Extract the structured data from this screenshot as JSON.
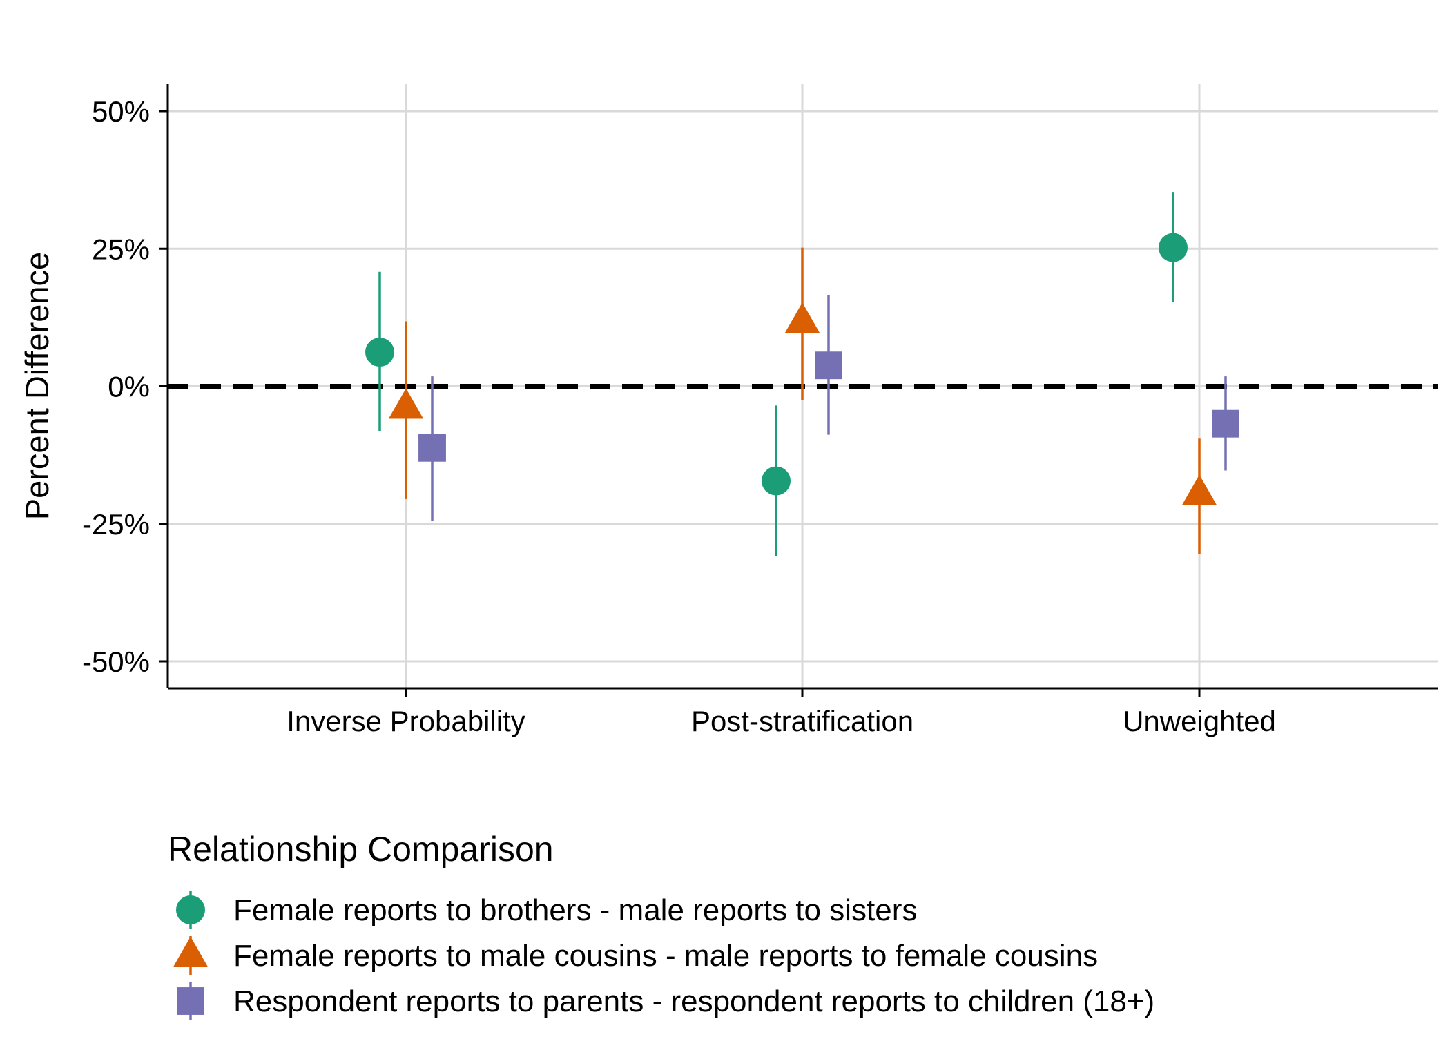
{
  "chart_data": {
    "type": "scatter",
    "subtype": "point-range",
    "ylabel": "Percent Difference",
    "xlabel": "",
    "categories": [
      "Inverse Probability",
      "Post-stratification",
      "Unweighted"
    ],
    "y_ticks": [
      {
        "value": 50,
        "label": "50%"
      },
      {
        "value": 25,
        "label": "25%"
      },
      {
        "value": 0,
        "label": "0%"
      },
      {
        "value": -25,
        "label": "-25%"
      },
      {
        "value": -50,
        "label": "-50%"
      }
    ],
    "ylim": [
      -55,
      55
    ],
    "grid": true,
    "reference_line": {
      "value": 0,
      "style": "dashed",
      "color": "#000000"
    },
    "legend": {
      "title": "Relationship Comparison",
      "placement": "bottom"
    },
    "series": [
      {
        "name": "Female reports to brothers - male reports to sisters",
        "shape": "circle",
        "color": "#1b9e77",
        "values": [
          6.2,
          -17.2,
          25.2
        ],
        "lower": [
          -8.2,
          -30.8,
          15.3
        ],
        "upper": [
          20.8,
          -3.5,
          35.3
        ]
      },
      {
        "name": "Female reports to male cousins - male reports to female cousins",
        "shape": "triangle",
        "color": "#d95f02",
        "values": [
          -3.8,
          11.8,
          -19.5
        ],
        "lower": [
          -20.5,
          -2.5,
          -30.5
        ],
        "upper": [
          11.8,
          25.2,
          -9.5
        ]
      },
      {
        "name": "Respondent reports to parents - respondent reports to children (18+)",
        "shape": "square",
        "color": "#7570b3",
        "values": [
          -11.2,
          3.8,
          -6.8
        ],
        "lower": [
          -24.5,
          -8.8,
          -15.3
        ],
        "upper": [
          1.8,
          16.5,
          1.8
        ]
      }
    ]
  }
}
